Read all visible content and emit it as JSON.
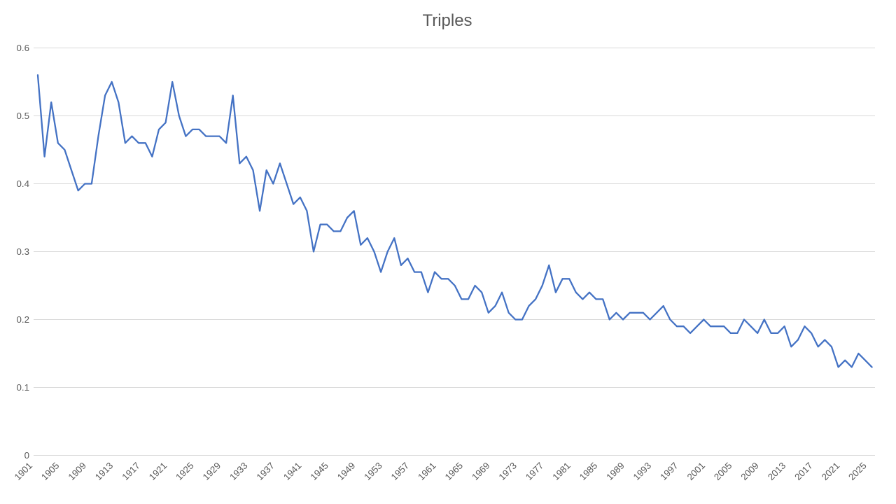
{
  "page": {
    "background": "#ffffff"
  },
  "chart_data": {
    "type": "line",
    "title": "Triples",
    "legend": "none",
    "grid": true,
    "series_name": "Triples",
    "series_color": "#4472C4",
    "gridline_color": "#D9D9D9",
    "text_color": "#595959",
    "xlabel": "",
    "ylabel": "",
    "ylim": [
      0,
      0.6
    ],
    "yticks": [
      0,
      0.1,
      0.2,
      0.3,
      0.4,
      0.5,
      0.6
    ],
    "ytick_labels": [
      "0",
      "0.1",
      "0.2",
      "0.3",
      "0.4",
      "0.5",
      "0.6"
    ],
    "x_tick_step": 4,
    "x_tick_labels": [
      "1901",
      "1905",
      "1909",
      "1913",
      "1917",
      "1921",
      "1925",
      "1929",
      "1933",
      "1937",
      "1941",
      "1945",
      "1949",
      "1953",
      "1957",
      "1961",
      "1965",
      "1969",
      "1973",
      "1977",
      "1981",
      "1985",
      "1989",
      "1993",
      "1997",
      "2001",
      "2005",
      "2009",
      "2013",
      "2017",
      "2021",
      "2025"
    ],
    "years": [
      1901,
      1902,
      1903,
      1904,
      1905,
      1906,
      1907,
      1908,
      1909,
      1910,
      1911,
      1912,
      1913,
      1914,
      1915,
      1916,
      1917,
      1918,
      1919,
      1920,
      1921,
      1922,
      1923,
      1924,
      1925,
      1926,
      1927,
      1928,
      1929,
      1930,
      1931,
      1932,
      1933,
      1934,
      1935,
      1936,
      1937,
      1938,
      1939,
      1940,
      1941,
      1942,
      1943,
      1944,
      1945,
      1946,
      1947,
      1948,
      1949,
      1950,
      1951,
      1952,
      1953,
      1954,
      1955,
      1956,
      1957,
      1958,
      1959,
      1960,
      1961,
      1962,
      1963,
      1964,
      1965,
      1966,
      1967,
      1968,
      1969,
      1970,
      1971,
      1972,
      1973,
      1974,
      1975,
      1976,
      1977,
      1978,
      1979,
      1980,
      1981,
      1982,
      1983,
      1984,
      1985,
      1986,
      1987,
      1988,
      1989,
      1990,
      1991,
      1992,
      1993,
      1994,
      1995,
      1996,
      1997,
      1998,
      1999,
      2000,
      2001,
      2002,
      2003,
      2004,
      2005,
      2006,
      2007,
      2008,
      2009,
      2010,
      2011,
      2012,
      2013,
      2014,
      2015,
      2016,
      2017,
      2018,
      2019,
      2020,
      2021,
      2022,
      2023,
      2024,
      2025
    ],
    "values": [
      0.56,
      0.44,
      0.52,
      0.46,
      0.45,
      0.42,
      0.39,
      0.4,
      0.4,
      0.47,
      0.53,
      0.55,
      0.52,
      0.46,
      0.47,
      0.46,
      0.46,
      0.44,
      0.48,
      0.49,
      0.55,
      0.5,
      0.47,
      0.48,
      0.48,
      0.47,
      0.47,
      0.47,
      0.46,
      0.53,
      0.43,
      0.44,
      0.42,
      0.36,
      0.42,
      0.4,
      0.43,
      0.4,
      0.37,
      0.38,
      0.36,
      0.3,
      0.34,
      0.34,
      0.33,
      0.33,
      0.35,
      0.36,
      0.31,
      0.32,
      0.3,
      0.27,
      0.3,
      0.32,
      0.28,
      0.29,
      0.27,
      0.27,
      0.24,
      0.27,
      0.26,
      0.26,
      0.25,
      0.23,
      0.23,
      0.25,
      0.24,
      0.21,
      0.22,
      0.24,
      0.21,
      0.2,
      0.2,
      0.22,
      0.23,
      0.25,
      0.28,
      0.24,
      0.26,
      0.26,
      0.24,
      0.23,
      0.24,
      0.23,
      0.23,
      0.2,
      0.21,
      0.2,
      0.21,
      0.21,
      0.21,
      0.2,
      0.21,
      0.22,
      0.2,
      0.19,
      0.19,
      0.18,
      0.19,
      0.2,
      0.19,
      0.19,
      0.19,
      0.18,
      0.18,
      0.2,
      0.19,
      0.18,
      0.2,
      0.18,
      0.18,
      0.19,
      0.16,
      0.17,
      0.19,
      0.18,
      0.16,
      0.17,
      0.16,
      0.13,
      0.14,
      0.13,
      0.15,
      0.14,
      0.13
    ]
  }
}
